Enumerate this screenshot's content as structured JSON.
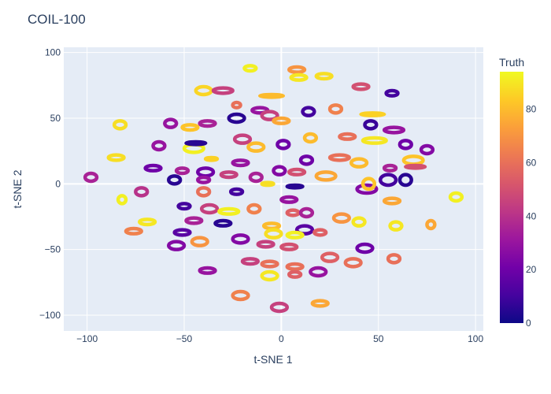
{
  "chart_data": {
    "type": "scatter",
    "title": "COIL-100",
    "xlabel": "t-SNE 1",
    "ylabel": "t-SNE 2",
    "xlim": [
      -112,
      104
    ],
    "ylim": [
      -112,
      104
    ],
    "xticks": [
      -100,
      -50,
      0,
      50,
      100
    ],
    "yticks": [
      -100,
      -50,
      0,
      50,
      100
    ],
    "grid": true,
    "colorbar": {
      "title": "Truth",
      "range": [
        0,
        94
      ],
      "ticks": [
        0,
        20,
        40,
        60,
        80
      ],
      "colorscale": [
        "#0d0887",
        "#46039f",
        "#7201a8",
        "#9c179e",
        "#bd3786",
        "#d8576b",
        "#ed7953",
        "#fb9f3a",
        "#fdca26",
        "#f0f921"
      ]
    },
    "clusters": [
      {
        "x": -16,
        "y": 88,
        "v": 92,
        "w": 3,
        "h": 2
      },
      {
        "x": 8,
        "y": 87,
        "v": 70,
        "w": 4,
        "h": 2
      },
      {
        "x": 9,
        "y": 81,
        "v": 90,
        "w": 4,
        "h": 2
      },
      {
        "x": 22,
        "y": 82,
        "v": 88,
        "w": 4,
        "h": 2
      },
      {
        "x": -40,
        "y": 71,
        "v": 86,
        "w": 4,
        "h": 3
      },
      {
        "x": -30,
        "y": 71,
        "v": 45,
        "w": 5,
        "h": 2
      },
      {
        "x": -5,
        "y": 67,
        "v": 80,
        "w": 6,
        "h": 1
      },
      {
        "x": 41,
        "y": 74,
        "v": 50,
        "w": 4,
        "h": 2
      },
      {
        "x": 57,
        "y": 69,
        "v": 10,
        "w": 3,
        "h": 2
      },
      {
        "x": -23,
        "y": 60,
        "v": 60,
        "w": 2,
        "h": 2
      },
      {
        "x": -11,
        "y": 56,
        "v": 30,
        "w": 4,
        "h": 2
      },
      {
        "x": -6,
        "y": 52,
        "v": 45,
        "w": 4,
        "h": 3
      },
      {
        "x": 0,
        "y": 48,
        "v": 75,
        "w": 4,
        "h": 2
      },
      {
        "x": 14,
        "y": 55,
        "v": 10,
        "w": 3,
        "h": 3
      },
      {
        "x": 28,
        "y": 57,
        "v": 65,
        "w": 3,
        "h": 3
      },
      {
        "x": 47,
        "y": 53,
        "v": 85,
        "w": 6,
        "h": 1
      },
      {
        "x": -83,
        "y": 45,
        "v": 88,
        "w": 3,
        "h": 3
      },
      {
        "x": -57,
        "y": 46,
        "v": 30,
        "w": 3,
        "h": 3
      },
      {
        "x": -47,
        "y": 43,
        "v": 82,
        "w": 4,
        "h": 2
      },
      {
        "x": -38,
        "y": 46,
        "v": 35,
        "w": 4,
        "h": 2
      },
      {
        "x": -23,
        "y": 50,
        "v": 5,
        "w": 4,
        "h": 3
      },
      {
        "x": 46,
        "y": 45,
        "v": 8,
        "w": 3,
        "h": 3
      },
      {
        "x": 58,
        "y": 41,
        "v": 30,
        "w": 5,
        "h": 2
      },
      {
        "x": -63,
        "y": 29,
        "v": 30,
        "w": 3,
        "h": 3
      },
      {
        "x": -45,
        "y": 27,
        "v": 92,
        "w": 5,
        "h": 3
      },
      {
        "x": -44,
        "y": 31,
        "v": 5,
        "w": 5,
        "h": 1
      },
      {
        "x": -20,
        "y": 34,
        "v": 45,
        "w": 4,
        "h": 3
      },
      {
        "x": -13,
        "y": 28,
        "v": 80,
        "w": 4,
        "h": 3
      },
      {
        "x": 1,
        "y": 30,
        "v": 20,
        "w": 3,
        "h": 3
      },
      {
        "x": 15,
        "y": 35,
        "v": 80,
        "w": 3,
        "h": 3
      },
      {
        "x": 34,
        "y": 36,
        "v": 60,
        "w": 4,
        "h": 2
      },
      {
        "x": 48,
        "y": 33,
        "v": 90,
        "w": 6,
        "h": 2
      },
      {
        "x": 64,
        "y": 30,
        "v": 20,
        "w": 3,
        "h": 3
      },
      {
        "x": 75,
        "y": 26,
        "v": 25,
        "w": 3,
        "h": 3
      },
      {
        "x": -85,
        "y": 20,
        "v": 88,
        "w": 4,
        "h": 2
      },
      {
        "x": -36,
        "y": 19,
        "v": 85,
        "w": 3,
        "h": 1
      },
      {
        "x": -21,
        "y": 16,
        "v": 30,
        "w": 4,
        "h": 2
      },
      {
        "x": 30,
        "y": 20,
        "v": 60,
        "w": 5,
        "h": 2
      },
      {
        "x": 13,
        "y": 18,
        "v": 20,
        "w": 3,
        "h": 3
      },
      {
        "x": 40,
        "y": 16,
        "v": 80,
        "w": 4,
        "h": 3
      },
      {
        "x": 68,
        "y": 18,
        "v": 82,
        "w": 5,
        "h": 3
      },
      {
        "x": 69,
        "y": 13,
        "v": 50,
        "w": 5,
        "h": 1
      },
      {
        "x": 56,
        "y": 12,
        "v": 35,
        "w": 3,
        "h": 2
      },
      {
        "x": -66,
        "y": 12,
        "v": 20,
        "w": 4,
        "h": 2
      },
      {
        "x": -51,
        "y": 10,
        "v": 35,
        "w": 3,
        "h": 2
      },
      {
        "x": -39,
        "y": 9,
        "v": 20,
        "w": 4,
        "h": 3
      },
      {
        "x": -27,
        "y": 7,
        "v": 45,
        "w": 4,
        "h": 2
      },
      {
        "x": -13,
        "y": 5,
        "v": 35,
        "w": 3,
        "h": 3
      },
      {
        "x": -1,
        "y": 10,
        "v": 25,
        "w": 3,
        "h": 3
      },
      {
        "x": 8,
        "y": 9,
        "v": 50,
        "w": 4,
        "h": 2
      },
      {
        "x": 23,
        "y": 6,
        "v": 75,
        "w": 5,
        "h": 3
      },
      {
        "x": 55,
        "y": 3,
        "v": 10,
        "w": 4,
        "h": 4
      },
      {
        "x": 64,
        "y": 3,
        "v": 5,
        "w": 3,
        "h": 4
      },
      {
        "x": -98,
        "y": 5,
        "v": 35,
        "w": 3,
        "h": 3
      },
      {
        "x": -55,
        "y": 3,
        "v": 5,
        "w": 3,
        "h": 3
      },
      {
        "x": -40,
        "y": 3,
        "v": 30,
        "w": 3,
        "h": 2
      },
      {
        "x": -7,
        "y": 0,
        "v": 88,
        "w": 3,
        "h": 1
      },
      {
        "x": 7,
        "y": -2,
        "v": 5,
        "w": 4,
        "h": 1
      },
      {
        "x": 44,
        "y": -4,
        "v": 25,
        "w": 5,
        "h": 3
      },
      {
        "x": 45,
        "y": 0,
        "v": 82,
        "w": 3,
        "h": 4
      },
      {
        "x": -72,
        "y": -6,
        "v": 40,
        "w": 3,
        "h": 3
      },
      {
        "x": -40,
        "y": -6,
        "v": 60,
        "w": 3,
        "h": 3
      },
      {
        "x": -23,
        "y": -6,
        "v": 10,
        "w": 3,
        "h": 2
      },
      {
        "x": 4,
        "y": -12,
        "v": 30,
        "w": 4,
        "h": 2
      },
      {
        "x": -82,
        "y": -12,
        "v": 92,
        "w": 2,
        "h": 3
      },
      {
        "x": -50,
        "y": -17,
        "v": 10,
        "w": 3,
        "h": 2
      },
      {
        "x": -37,
        "y": -19,
        "v": 45,
        "w": 4,
        "h": 3
      },
      {
        "x": -27,
        "y": -21,
        "v": 92,
        "w": 5,
        "h": 2
      },
      {
        "x": -14,
        "y": -19,
        "v": 65,
        "w": 3,
        "h": 3
      },
      {
        "x": 57,
        "y": -13,
        "v": 75,
        "w": 4,
        "h": 2
      },
      {
        "x": 90,
        "y": -10,
        "v": 92,
        "w": 3,
        "h": 3
      },
      {
        "x": 6,
        "y": -22,
        "v": 55,
        "w": 3,
        "h": 2
      },
      {
        "x": 13,
        "y": -22,
        "v": 35,
        "w": 3,
        "h": 3
      },
      {
        "x": 31,
        "y": -26,
        "v": 70,
        "w": 4,
        "h": 3
      },
      {
        "x": 40,
        "y": -29,
        "v": 90,
        "w": 3,
        "h": 3
      },
      {
        "x": -69,
        "y": -29,
        "v": 90,
        "w": 4,
        "h": 2
      },
      {
        "x": -45,
        "y": -28,
        "v": 35,
        "w": 4,
        "h": 2
      },
      {
        "x": -30,
        "y": -30,
        "v": 5,
        "w": 4,
        "h": 2
      },
      {
        "x": -5,
        "y": -32,
        "v": 80,
        "w": 4,
        "h": 2
      },
      {
        "x": 12,
        "y": -35,
        "v": 15,
        "w": 4,
        "h": 3
      },
      {
        "x": 59,
        "y": -32,
        "v": 90,
        "w": 3,
        "h": 3
      },
      {
        "x": 77,
        "y": -31,
        "v": 75,
        "w": 2,
        "h": 3
      },
      {
        "x": -76,
        "y": -36,
        "v": 65,
        "w": 4,
        "h": 2
      },
      {
        "x": -51,
        "y": -37,
        "v": 15,
        "w": 4,
        "h": 2
      },
      {
        "x": -4,
        "y": -38,
        "v": 88,
        "w": 4,
        "h": 3
      },
      {
        "x": 7,
        "y": -39,
        "v": 92,
        "w": 4,
        "h": 2
      },
      {
        "x": 20,
        "y": -37,
        "v": 55,
        "w": 3,
        "h": 2
      },
      {
        "x": -42,
        "y": -44,
        "v": 70,
        "w": 4,
        "h": 3
      },
      {
        "x": -21,
        "y": -42,
        "v": 25,
        "w": 4,
        "h": 3
      },
      {
        "x": -8,
        "y": -46,
        "v": 45,
        "w": 4,
        "h": 2
      },
      {
        "x": -54,
        "y": -47,
        "v": 25,
        "w": 4,
        "h": 3
      },
      {
        "x": 4,
        "y": -48,
        "v": 50,
        "w": 4,
        "h": 2
      },
      {
        "x": 25,
        "y": -56,
        "v": 55,
        "w": 4,
        "h": 3
      },
      {
        "x": 43,
        "y": -49,
        "v": 20,
        "w": 4,
        "h": 3
      },
      {
        "x": 58,
        "y": -57,
        "v": 60,
        "w": 3,
        "h": 3
      },
      {
        "x": -16,
        "y": -59,
        "v": 45,
        "w": 4,
        "h": 2
      },
      {
        "x": -38,
        "y": -66,
        "v": 30,
        "w": 4,
        "h": 2
      },
      {
        "x": -6,
        "y": -61,
        "v": 60,
        "w": 4,
        "h": 2
      },
      {
        "x": 7,
        "y": -63,
        "v": 60,
        "w": 4,
        "h": 2
      },
      {
        "x": 19,
        "y": -67,
        "v": 30,
        "w": 4,
        "h": 3
      },
      {
        "x": 37,
        "y": -60,
        "v": 60,
        "w": 4,
        "h": 3
      },
      {
        "x": -6,
        "y": -70,
        "v": 90,
        "w": 4,
        "h": 3
      },
      {
        "x": 7,
        "y": -69,
        "v": 55,
        "w": 3,
        "h": 2
      },
      {
        "x": -21,
        "y": -85,
        "v": 65,
        "w": 4,
        "h": 3
      },
      {
        "x": -1,
        "y": -94,
        "v": 45,
        "w": 4,
        "h": 3
      },
      {
        "x": 20,
        "y": -91,
        "v": 75,
        "w": 4,
        "h": 2
      }
    ]
  }
}
